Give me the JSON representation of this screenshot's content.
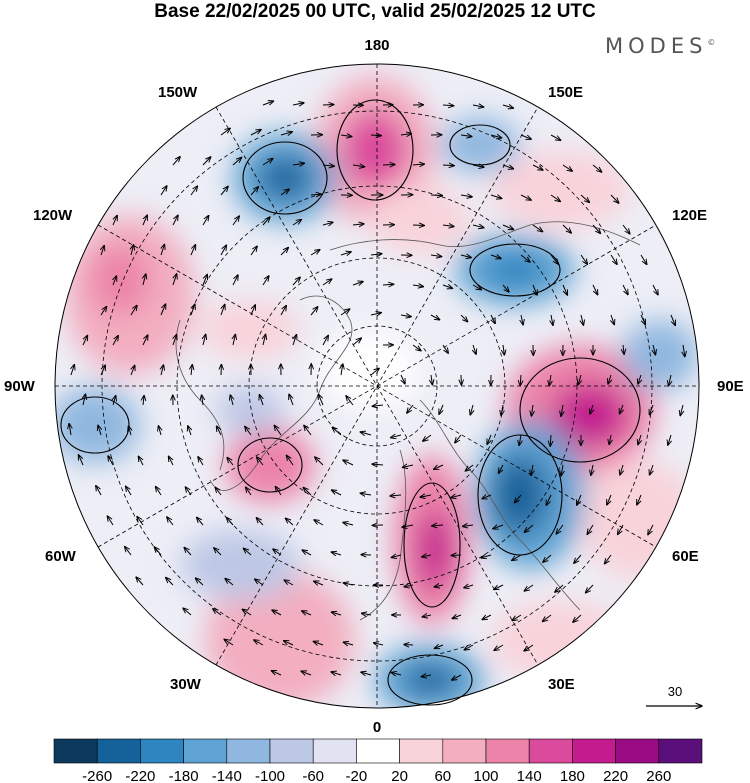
{
  "title": "Base 22/02/2025 00 UTC, valid 25/02/2025 12 UTC",
  "brand": "MODES",
  "brand_mark": "©",
  "map": {
    "projection": "north-polar-stereographic",
    "longitude_labels": [
      "180",
      "150E",
      "120E",
      "90E",
      "60E",
      "30E",
      "0",
      "30W",
      "60W",
      "90W",
      "120W",
      "150W"
    ],
    "reference_vector": "30"
  },
  "colorbar": {
    "tick_labels": [
      "-260",
      "-220",
      "-180",
      "-140",
      "-100",
      "-60",
      "-20",
      "20",
      "60",
      "100",
      "140",
      "180",
      "220",
      "260"
    ],
    "colors": [
      "#0d3a5c",
      "#15629a",
      "#2f85c0",
      "#5ea3d3",
      "#8fb7df",
      "#bdc8e6",
      "#e2e3f2",
      "#ffffff",
      "#f9d3da",
      "#f3aec0",
      "#ec83a9",
      "#db4a9c",
      "#c41c8f",
      "#9a0a83",
      "#5a0f7a"
    ]
  }
}
